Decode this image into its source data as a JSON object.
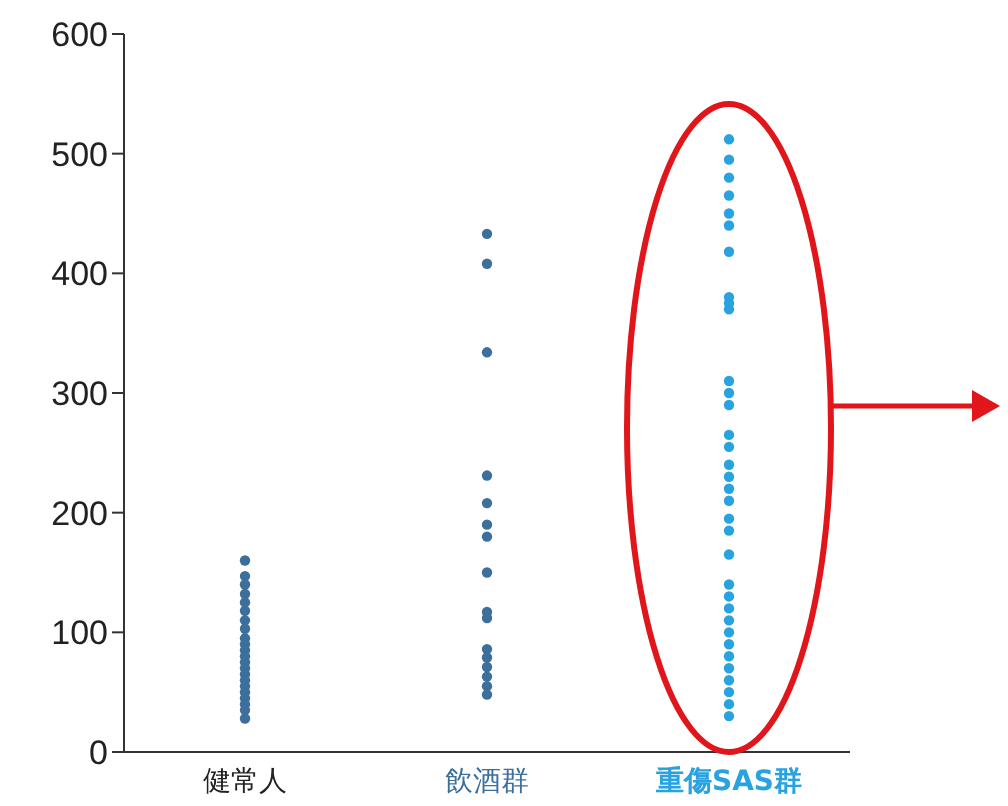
{
  "chart_data": {
    "type": "scatter",
    "categories": [
      "健常人",
      "飲酒群",
      "重傷SAS群"
    ],
    "marker": "circle",
    "ylim": [
      0,
      600
    ],
    "yticks": [
      0,
      100,
      200,
      300,
      400,
      500,
      600
    ],
    "grid": false,
    "legend": false,
    "series": [
      {
        "color": "#3d6f9c",
        "x": [
          "健常人",
          "健常人",
          "健常人",
          "健常人",
          "健常人",
          "健常人",
          "健常人",
          "健常人",
          "健常人",
          "健常人",
          "健常人",
          "健常人",
          "健常人",
          "健常人",
          "健常人",
          "健常人",
          "健常人",
          "健常人",
          "健常人",
          "健常人",
          "健常人",
          "健常人"
        ],
        "values": [
          160,
          147,
          140,
          132,
          125,
          118,
          110,
          103,
          95,
          90,
          85,
          80,
          75,
          70,
          65,
          60,
          55,
          50,
          45,
          40,
          35,
          28
        ]
      },
      {
        "color": "#3d6f9c",
        "x": [
          "飲酒群",
          "飲酒群",
          "飲酒群",
          "飲酒群",
          "飲酒群",
          "飲酒群",
          "飲酒群",
          "飲酒群",
          "飲酒群",
          "飲酒群",
          "飲酒群",
          "飲酒群",
          "飲酒群",
          "飲酒群",
          "飲酒群",
          "飲酒群"
        ],
        "values": [
          433,
          408,
          334,
          231,
          208,
          190,
          180,
          150,
          117,
          112,
          86,
          79,
          71,
          63,
          55,
          48
        ]
      },
      {
        "color": "#29a3e0",
        "x": [
          "重傷SAS群",
          "重傷SAS群",
          "重傷SAS群",
          "重傷SAS群",
          "重傷SAS群",
          "重傷SAS群",
          "重傷SAS群",
          "重傷SAS群",
          "重傷SAS群",
          "重傷SAS群",
          "重傷SAS群",
          "重傷SAS群",
          "重傷SAS群",
          "重傷SAS群",
          "重傷SAS群",
          "重傷SAS群",
          "重傷SAS群",
          "重傷SAS群",
          "重傷SAS群",
          "重傷SAS群",
          "重傷SAS群",
          "重傷SAS群",
          "重傷SAS群",
          "重傷SAS群",
          "重傷SAS群",
          "重傷SAS群",
          "重傷SAS群",
          "重傷SAS群",
          "重傷SAS群",
          "重傷SAS群",
          "重傷SAS群",
          "重傷SAS群",
          "重傷SAS群",
          "重傷SAS群"
        ],
        "values": [
          512,
          495,
          480,
          465,
          450,
          440,
          418,
          380,
          375,
          370,
          310,
          300,
          290,
          265,
          255,
          240,
          230,
          220,
          210,
          195,
          185,
          165,
          140,
          130,
          120,
          110,
          100,
          90,
          80,
          70,
          60,
          50,
          40,
          30
        ]
      }
    ]
  }
}
